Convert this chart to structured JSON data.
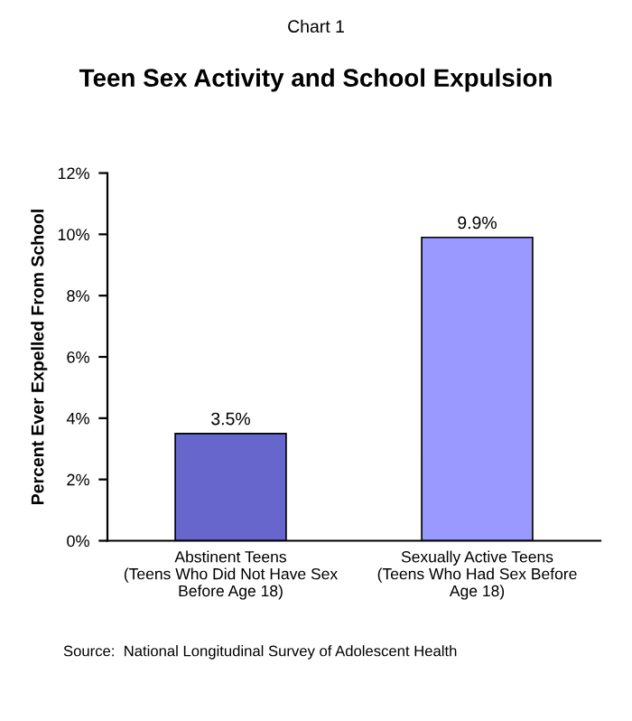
{
  "chart_data": {
    "type": "bar",
    "title": "Teen Sex Activity and School Expulsion",
    "subtitle": "Chart 1",
    "ylabel": "Percent Ever Expelled From School",
    "categories": [
      "Abstinent Teens\n(Teens Who Did Not Have Sex\nBefore Age 18)",
      "Sexually Active Teens\n(Teens Who Had Sex Before\nAge 18)"
    ],
    "values": [
      3.5,
      9.9
    ],
    "colors": [
      "#6666cc",
      "#9999ff"
    ],
    "value_labels": [
      "3.5%",
      "9.9%"
    ],
    "ylim": [
      0,
      12
    ],
    "yticks": [
      {
        "value": 0,
        "label": "0%"
      },
      {
        "value": 2,
        "label": "2%"
      },
      {
        "value": 4,
        "label": "4%"
      },
      {
        "value": 6,
        "label": "6%"
      },
      {
        "value": 8,
        "label": "8%"
      },
      {
        "value": 10,
        "label": "10%"
      },
      {
        "value": 12,
        "label": "12%"
      }
    ],
    "grid": false,
    "legend": false,
    "annotations": [
      "Source:  National Longitudinal Survey of Adolescent Health"
    ]
  }
}
